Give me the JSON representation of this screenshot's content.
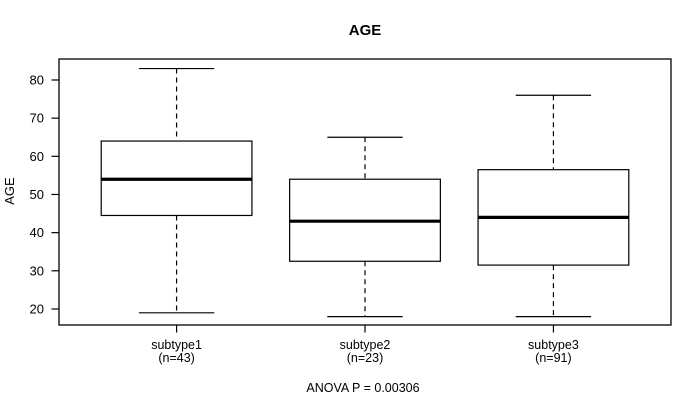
{
  "figure": {
    "title": "AGE",
    "y_axis_label": "AGE",
    "annotation": "ANOVA P = 0.00306"
  },
  "chart_data": {
    "type": "boxplot",
    "title": "AGE",
    "ylabel": "AGE",
    "xlabel": "",
    "annotation": "ANOVA P = 0.00306",
    "grid": false,
    "legend": "none",
    "y_ticks": [
      20,
      30,
      40,
      50,
      60,
      70,
      80
    ],
    "ylim": [
      15.8,
      85.5
    ],
    "xlim": [
      0.376,
      3.624
    ],
    "box_width": 0.8,
    "cap_width": 0.4,
    "groups": [
      {
        "label": "subtype1",
        "n_label": "(n=43)",
        "n": 43,
        "position": 1,
        "lower_whisker": 19,
        "q1": 44.5,
        "median": 54,
        "q3": 64,
        "upper_whisker": 83
      },
      {
        "label": "subtype2",
        "n_label": "(n=23)",
        "n": 23,
        "position": 2,
        "lower_whisker": 18,
        "q1": 32.5,
        "median": 43,
        "q3": 54,
        "upper_whisker": 65
      },
      {
        "label": "subtype3",
        "n_label": "(n=91)",
        "n": 91,
        "position": 3,
        "lower_whisker": 18,
        "q1": 31.5,
        "median": 44,
        "q3": 56.5,
        "upper_whisker": 76
      }
    ],
    "colors": {
      "stroke": "#000000",
      "box_fill": "#ffffff",
      "background": "#ffffff"
    }
  }
}
